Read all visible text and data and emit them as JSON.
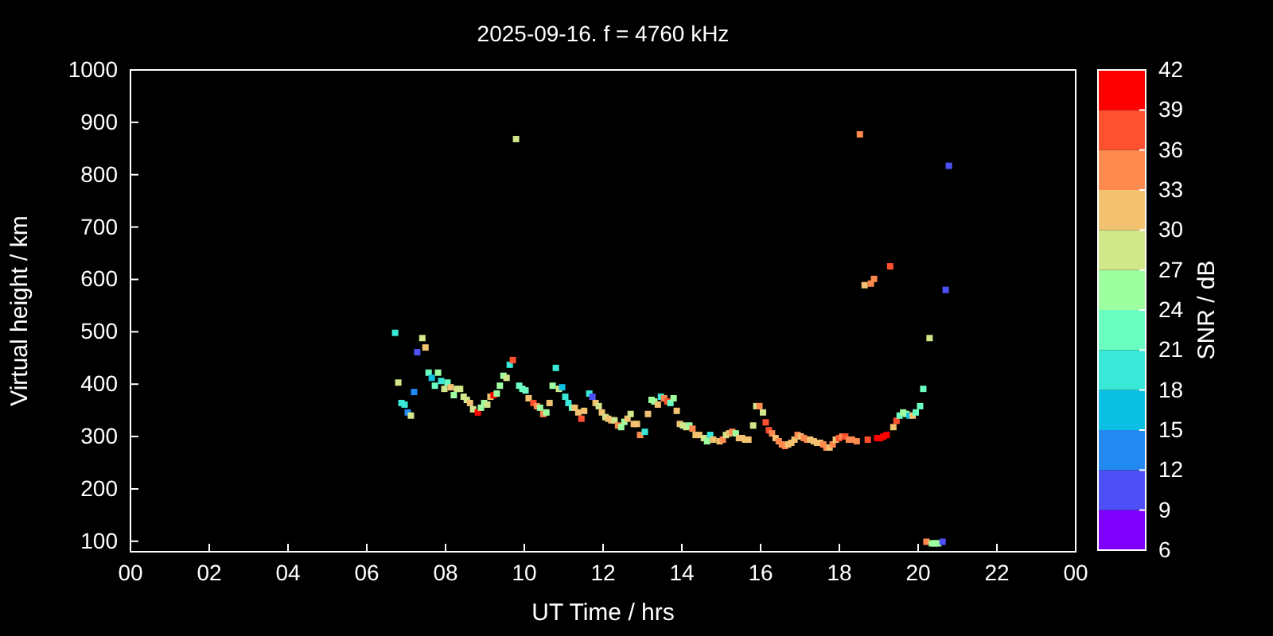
{
  "chart_data": {
    "type": "scatter",
    "title": "2025-09-16. f = 4760 kHz",
    "xlabel": "UT Time / hrs",
    "ylabel": "Virtual height / km",
    "clabel": "SNR / dB",
    "xlim": [
      0,
      24
    ],
    "xticks": [
      {
        "value": 0,
        "label": "00"
      },
      {
        "value": 2,
        "label": "02"
      },
      {
        "value": 4,
        "label": "04"
      },
      {
        "value": 6,
        "label": "06"
      },
      {
        "value": 8,
        "label": "08"
      },
      {
        "value": 10,
        "label": "10"
      },
      {
        "value": 12,
        "label": "12"
      },
      {
        "value": 14,
        "label": "14"
      },
      {
        "value": 16,
        "label": "16"
      },
      {
        "value": 18,
        "label": "18"
      },
      {
        "value": 20,
        "label": "20"
      },
      {
        "value": 22,
        "label": "22"
      },
      {
        "value": 24,
        "label": "00"
      }
    ],
    "ylim": [
      80,
      1000
    ],
    "yticks": [
      100,
      200,
      300,
      400,
      500,
      600,
      700,
      800,
      900,
      1000
    ],
    "clim": [
      6,
      42
    ],
    "cticks": [
      6,
      9,
      12,
      15,
      18,
      21,
      24,
      27,
      30,
      33,
      36,
      39,
      42
    ],
    "marker": "square",
    "grid": false,
    "x": [
      6.72,
      7.41,
      7.49,
      7.28,
      6.8,
      7.2,
      6.88,
      6.96,
      7.04,
      7.12,
      7.57,
      7.81,
      7.65,
      7.89,
      7.73,
      8.05,
      8.13,
      7.97,
      8.29,
      8.37,
      8.21,
      8.46,
      8.54,
      8.62,
      8.7,
      8.82,
      8.9,
      8.98,
      9.06,
      9.14,
      9.22,
      9.3,
      9.38,
      9.47,
      9.55,
      9.63,
      9.71,
      9.79,
      9.87,
      9.95,
      10.03,
      10.11,
      10.23,
      10.32,
      10.4,
      10.48,
      10.56,
      10.64,
      10.72,
      10.8,
      10.88,
      10.96,
      11.04,
      11.12,
      11.21,
      11.28,
      11.37,
      11.45,
      11.52,
      11.65,
      11.73,
      11.81,
      11.89,
      11.97,
      12.06,
      12.13,
      12.21,
      12.29,
      12.38,
      12.46,
      12.54,
      12.62,
      12.7,
      12.78,
      12.86,
      12.94,
      13.06,
      13.14,
      13.23,
      13.3,
      13.39,
      13.47,
      13.55,
      13.63,
      13.71,
      13.79,
      13.87,
      13.95,
      14.03,
      14.11,
      14.19,
      14.27,
      14.35,
      14.44,
      14.56,
      14.64,
      14.72,
      14.8,
      14.96,
      15.04,
      15.12,
      15.2,
      15.28,
      15.37,
      15.45,
      15.53,
      15.61,
      15.69,
      15.81,
      15.89,
      15.97,
      16.06,
      16.13,
      16.21,
      16.29,
      16.38,
      16.46,
      16.54,
      16.62,
      16.7,
      16.78,
      16.86,
      16.94,
      17.02,
      17.1,
      17.18,
      17.26,
      17.35,
      17.43,
      17.51,
      17.59,
      17.67,
      17.75,
      17.83,
      17.91,
      17.99,
      18.07,
      18.15,
      18.24,
      18.32,
      18.44,
      18.52,
      18.64,
      18.72,
      18.8,
      18.88,
      18.96,
      19.04,
      19.12,
      19.2,
      19.29,
      19.37,
      19.45,
      19.53,
      19.62,
      19.7,
      19.78,
      19.86,
      19.94,
      20.05,
      20.13,
      20.21,
      20.29,
      20.35,
      20.43,
      20.51,
      20.62,
      20.7,
      20.78
    ],
    "values": [
      498,
      488,
      470,
      461,
      403,
      385,
      364,
      361,
      346,
      340,
      422,
      422,
      412,
      406,
      397,
      403,
      394,
      391,
      391,
      391,
      379,
      376,
      370,
      364,
      352,
      346,
      355,
      364,
      361,
      376,
      379,
      382,
      397,
      416,
      412,
      437,
      446,
      868,
      397,
      391,
      388,
      373,
      364,
      358,
      355,
      343,
      346,
      364,
      397,
      431,
      391,
      394,
      376,
      364,
      355,
      355,
      346,
      334,
      349,
      382,
      376,
      364,
      358,
      346,
      337,
      334,
      331,
      331,
      321,
      318,
      328,
      334,
      343,
      324,
      324,
      303,
      309,
      343,
      370,
      367,
      361,
      376,
      373,
      367,
      364,
      373,
      349,
      324,
      321,
      318,
      321,
      315,
      303,
      303,
      297,
      291,
      303,
      294,
      291,
      294,
      303,
      306,
      309,
      306,
      297,
      297,
      294,
      294,
      321,
      358,
      358,
      346,
      327,
      312,
      306,
      297,
      291,
      285,
      282,
      285,
      288,
      294,
      303,
      300,
      297,
      294,
      294,
      291,
      288,
      288,
      285,
      279,
      279,
      285,
      294,
      297,
      300,
      300,
      294,
      294,
      291,
      877,
      589,
      294,
      592,
      601,
      297,
      297,
      300,
      303,
      625,
      318,
      330,
      340,
      346,
      343,
      340,
      340,
      346,
      358,
      391,
      99,
      488,
      96,
      96,
      96,
      99,
      580,
      817
    ],
    "cvalues": [
      20,
      29,
      32,
      10,
      29,
      13,
      20,
      20,
      13,
      29,
      23,
      26,
      17,
      20,
      23,
      23,
      32,
      29,
      29,
      29,
      26,
      29,
      29,
      32,
      29,
      41,
      26,
      26,
      29,
      32,
      40,
      26,
      26,
      26,
      29,
      20,
      37,
      29,
      23,
      23,
      23,
      32,
      37,
      35,
      26,
      35,
      26,
      32,
      26,
      20,
      29,
      17,
      20,
      20,
      23,
      32,
      32,
      37,
      32,
      20,
      11,
      32,
      29,
      32,
      29,
      32,
      32,
      29,
      35,
      26,
      26,
      32,
      29,
      32,
      32,
      35,
      20,
      32,
      26,
      26,
      32,
      20,
      35,
      37,
      23,
      26,
      32,
      32,
      29,
      29,
      26,
      35,
      32,
      32,
      29,
      26,
      20,
      32,
      32,
      35,
      29,
      32,
      35,
      26,
      32,
      32,
      32,
      32,
      29,
      29,
      35,
      29,
      37,
      37,
      35,
      32,
      35,
      35,
      35,
      32,
      32,
      32,
      35,
      32,
      35,
      35,
      32,
      32,
      32,
      32,
      35,
      35,
      32,
      35,
      32,
      37,
      35,
      37,
      35,
      35,
      35,
      35,
      32,
      37,
      35,
      35,
      41,
      41,
      41,
      41,
      37,
      32,
      37,
      23,
      26,
      26,
      17,
      32,
      23,
      23,
      23,
      35,
      29,
      26,
      26,
      26,
      10,
      10,
      10
    ]
  }
}
